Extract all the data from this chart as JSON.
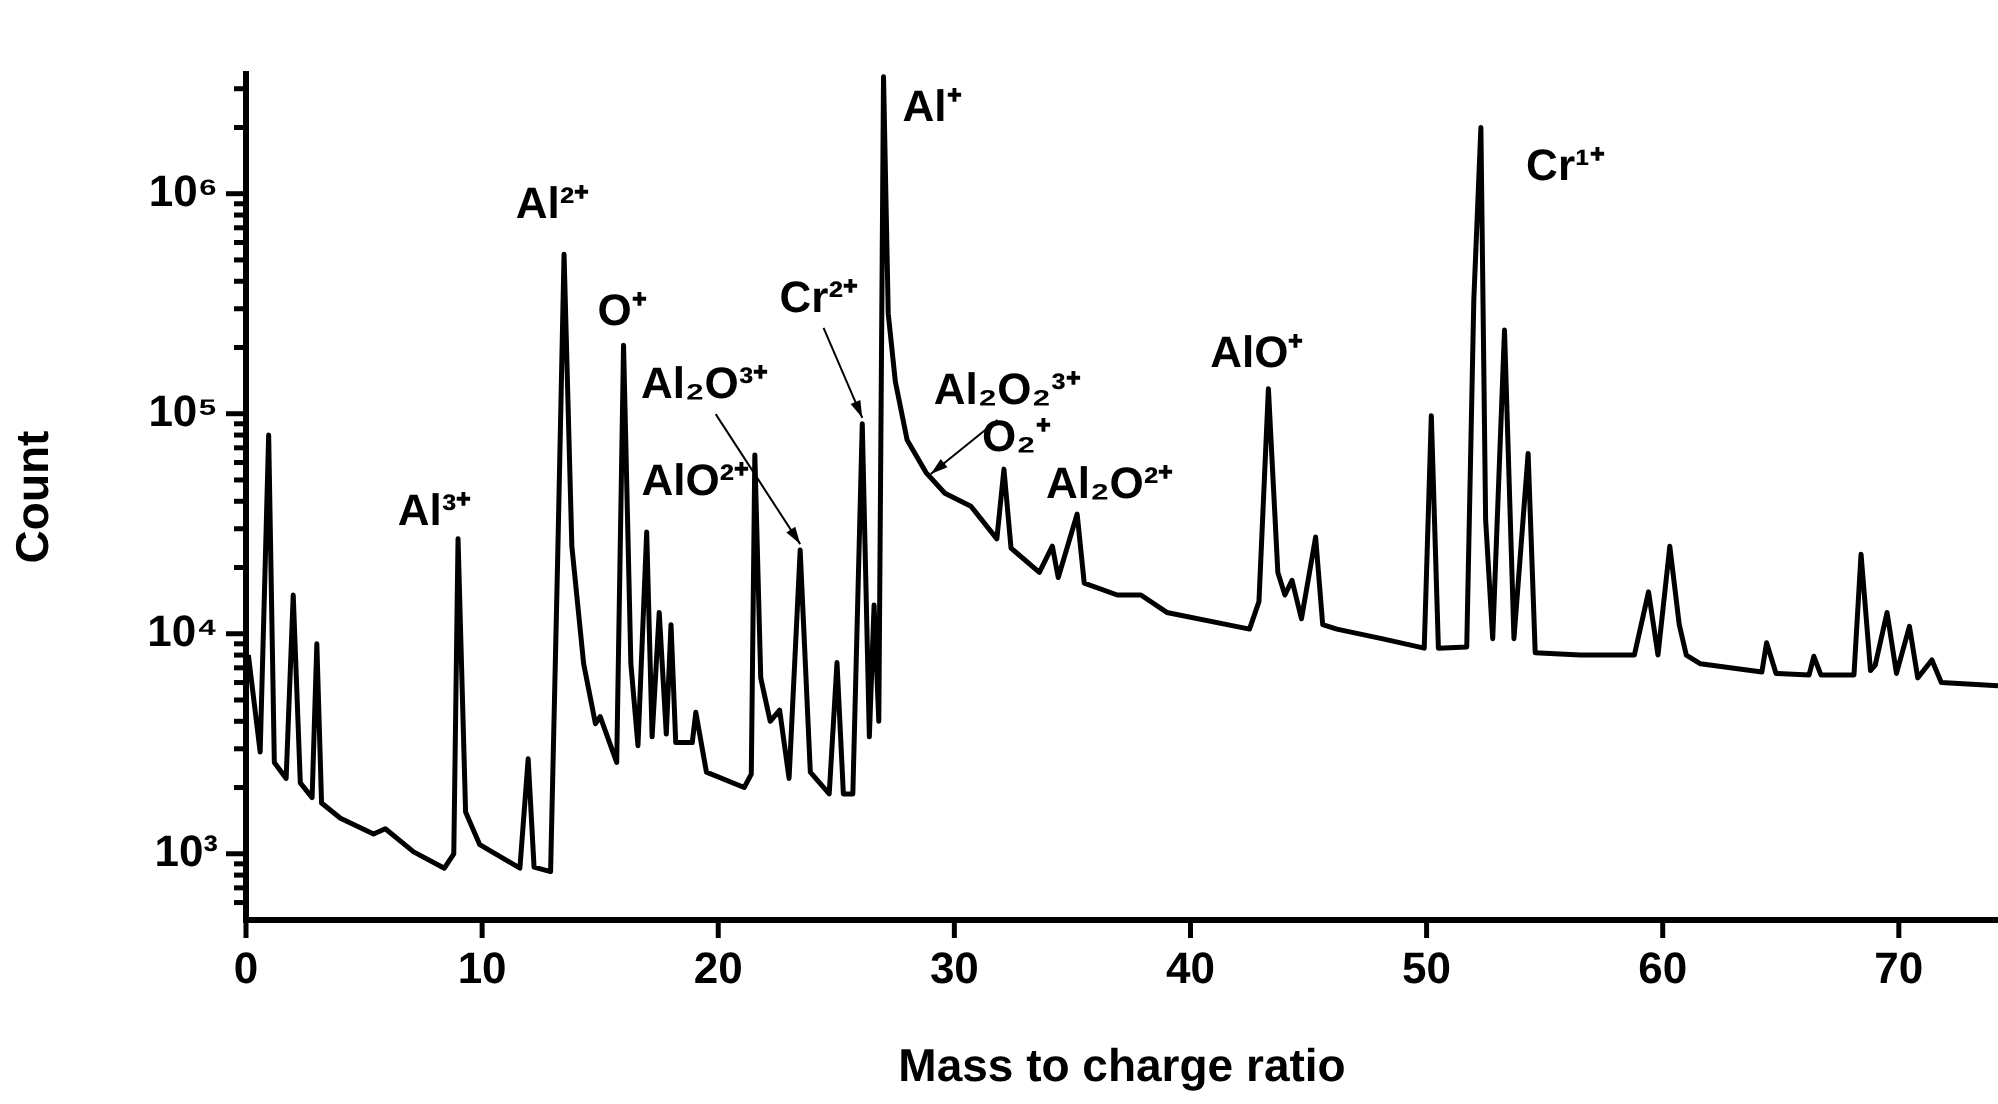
{
  "chart_data": {
    "type": "line",
    "xlabel": "Mass to charge ratio",
    "ylabel": "Count",
    "log": "y",
    "color": "#000000",
    "x": [
      0.1,
      0.6,
      0.96,
      1.2,
      1.7,
      2.0,
      2.3,
      2.8,
      3.0,
      3.2,
      4.0,
      5.4,
      5.9,
      7.1,
      8.4,
      8.8,
      8.98,
      9.3,
      9.9,
      11.6,
      11.95,
      12.2,
      12.9,
      13.2,
      13.47,
      13.8,
      14.3,
      14.8,
      15.0,
      15.7,
      15.99,
      16.3,
      16.6,
      16.97,
      17.2,
      17.5,
      17.8,
      18.0,
      18.2,
      18.9,
      19.05,
      19.5,
      21.1,
      21.4,
      21.55,
      21.8,
      22.2,
      22.6,
      23.0,
      23.47,
      23.9,
      24.7,
      25.03,
      25.3,
      25.7,
      26.1,
      26.4,
      26.6,
      26.8,
      27.0,
      27.2,
      27.5,
      28.0,
      28.8,
      29.6,
      30.7,
      31.8,
      32.1,
      32.4,
      33.6,
      34.15,
      34.4,
      35.2,
      35.5,
      36.9,
      37.9,
      39.0,
      42.5,
      42.9,
      43.3,
      43.7,
      44.0,
      44.3,
      44.7,
      45.3,
      45.6,
      46.2,
      48.1,
      49.9,
      50.2,
      50.5,
      51.7,
      52.0,
      52.3,
      52.5,
      52.8,
      53.3,
      53.7,
      54.3,
      54.6,
      56.5,
      58.8,
      59.4,
      59.8,
      60.3,
      60.7,
      61.0,
      61.6,
      64.2,
      64.4,
      64.8,
      66.2,
      66.4,
      66.7,
      68.1,
      68.4,
      68.8,
      69.0,
      69.5,
      69.9,
      70.45,
      70.8,
      71.4,
      71.8,
      74.2
    ],
    "values": [
      8000,
      2900,
      80000,
      2600,
      2200,
      15000,
      2100,
      1800,
      9000,
      1700,
      1450,
      1230,
      1300,
      1020,
      860,
      1000,
      27000,
      1550,
      1100,
      860,
      2700,
      870,
      830,
      22000,
      530000,
      25000,
      7300,
      3900,
      4200,
      2600,
      205000,
      7300,
      3100,
      29000,
      3400,
      12500,
      3500,
      11000,
      3200,
      3200,
      4400,
      2350,
      2000,
      2300,
      65000,
      6300,
      4000,
      4500,
      2200,
      24000,
      2350,
      1870,
      7400,
      1870,
      1870,
      90000,
      3400,
      13500,
      4000,
      3400000,
      285000,
      140000,
      76000,
      54000,
      43500,
      38000,
      27000,
      56000,
      24500,
      19000,
      25000,
      18000,
      35000,
      17000,
      15000,
      15000,
      12500,
      10500,
      14000,
      130000,
      19000,
      15000,
      17500,
      11700,
      27500,
      11000,
      10500,
      9500,
      8600,
      98000,
      8600,
      8700,
      330000,
      2000000,
      33000,
      9500,
      240000,
      9500,
      66000,
      8200,
      8000,
      8000,
      15500,
      8000,
      25000,
      11000,
      8000,
      7300,
      6700,
      9100,
      6600,
      6500,
      7900,
      6500,
      6500,
      23000,
      6800,
      7200,
      12500,
      6600,
      10800,
      6300,
      7600,
      6000,
      5800
    ],
    "xlim": [
      0,
      74.2
    ],
    "xticks": [
      0,
      10,
      20,
      30,
      40,
      50,
      60,
      70
    ],
    "ylim": [
      500,
      3500000
    ],
    "yticks": [
      {
        "value": 600,
        "label": null
      },
      {
        "value": 700,
        "label": null
      },
      {
        "value": 800,
        "label": null
      },
      {
        "value": 900,
        "label": null
      },
      {
        "value": 1000,
        "label": "10³"
      },
      {
        "value": 2000,
        "label": null
      },
      {
        "value": 3000,
        "label": null
      },
      {
        "value": 4000,
        "label": null
      },
      {
        "value": 5000,
        "label": null
      },
      {
        "value": 6000,
        "label": null
      },
      {
        "value": 7000,
        "label": null
      },
      {
        "value": 8000,
        "label": null
      },
      {
        "value": 9000,
        "label": null
      },
      {
        "value": 10000,
        "label": "10⁴"
      },
      {
        "value": 20000,
        "label": null
      },
      {
        "value": 30000,
        "label": null
      },
      {
        "value": 40000,
        "label": null
      },
      {
        "value": 50000,
        "label": null
      },
      {
        "value": 60000,
        "label": null
      },
      {
        "value": 70000,
        "label": null
      },
      {
        "value": 80000,
        "label": null
      },
      {
        "value": 90000,
        "label": null
      },
      {
        "value": 100000,
        "label": "10⁵"
      },
      {
        "value": 200000,
        "label": null
      },
      {
        "value": 300000,
        "label": null
      },
      {
        "value": 400000,
        "label": null
      },
      {
        "value": 500000,
        "label": null
      },
      {
        "value": 600000,
        "label": null
      },
      {
        "value": 700000,
        "label": null
      },
      {
        "value": 800000,
        "label": null
      },
      {
        "value": 900000,
        "label": null
      },
      {
        "value": 1000000,
        "label": "10⁶"
      },
      {
        "value": 2000000,
        "label": null
      },
      {
        "value": 3000000,
        "label": null
      }
    ],
    "annotations": [
      {
        "text": "Al³⁺",
        "x": 8.98,
        "y": 27000
      },
      {
        "text": "Al²⁺",
        "x": 13.47,
        "y": 530000
      },
      {
        "text": "O⁺",
        "x": 15.99,
        "y": 205000
      },
      {
        "text": "AlO²⁺",
        "x": 21.55,
        "y": 65000
      },
      {
        "text": "Al₂O³⁺",
        "x": 23.47,
        "y": 24000
      },
      {
        "text": "Cr²⁺",
        "x": 26.1,
        "y": 90000
      },
      {
        "text": "Al⁺",
        "x": 27.0,
        "y": 3400000
      },
      {
        "text": "Al₂O₂³⁺",
        "x": 29.0,
        "y": 50000
      },
      {
        "text": "O₂⁺",
        "x": 32.1,
        "y": 56000
      },
      {
        "text": "Al₂O²⁺",
        "x": 35.2,
        "y": 35000
      },
      {
        "text": "AlO⁺",
        "x": 43.3,
        "y": 130000
      },
      {
        "text": "Cr¹⁺",
        "x": 52.3,
        "y": 2000000
      }
    ]
  }
}
